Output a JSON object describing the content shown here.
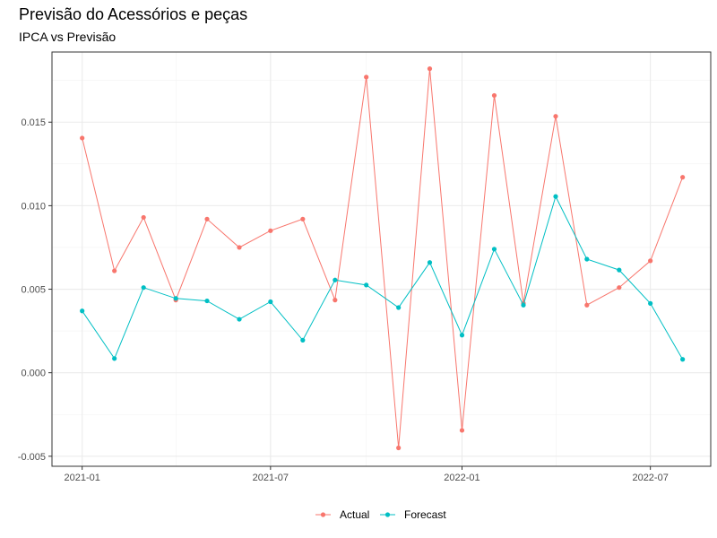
{
  "chart_data": {
    "type": "line",
    "title": "Previsão do Acessórios e peças",
    "subtitle": "IPCA vs Previsão",
    "xlabel": "",
    "ylabel": "",
    "x": [
      "2021-01-01",
      "2021-02-01",
      "2021-03-01",
      "2021-04-01",
      "2021-05-01",
      "2021-06-01",
      "2021-07-01",
      "2021-08-01",
      "2021-09-01",
      "2021-10-01",
      "2021-11-01",
      "2021-12-01",
      "2022-01-01",
      "2022-02-01",
      "2022-03-01",
      "2022-04-01",
      "2022-05-01",
      "2022-06-01",
      "2022-07-01",
      "2022-08-01"
    ],
    "x_ticks": [
      {
        "label": "2021-01",
        "date": "2021-01-01"
      },
      {
        "label": "2021-07",
        "date": "2021-07-01"
      },
      {
        "label": "2022-01",
        "date": "2022-01-01"
      },
      {
        "label": "2022-07",
        "date": "2022-07-01"
      }
    ],
    "y_ticks": [
      {
        "label": "-0.005",
        "value": -0.005
      },
      {
        "label": "0.000",
        "value": 0.0
      },
      {
        "label": "0.005",
        "value": 0.005
      },
      {
        "label": "0.010",
        "value": 0.01
      },
      {
        "label": "0.015",
        "value": 0.015
      }
    ],
    "ylim": [
      -0.0056,
      0.0192
    ],
    "xlim": [
      "2020-12-03",
      "2022-08-28"
    ],
    "grid": true,
    "legend_position": "bottom",
    "series": [
      {
        "name": "Actual",
        "color": "#F8766D",
        "values": [
          0.01405,
          0.0061,
          0.0093,
          0.00435,
          0.0092,
          0.0075,
          0.0085,
          0.0092,
          0.00435,
          0.0177,
          -0.0045,
          0.0182,
          -0.00345,
          0.0166,
          0.00415,
          0.01535,
          0.00405,
          0.0051,
          0.0067,
          0.0117
        ]
      },
      {
        "name": "Forecast",
        "color": "#00BFC4",
        "values": [
          0.0037,
          0.00085,
          0.0051,
          0.00445,
          0.0043,
          0.0032,
          0.00425,
          0.00195,
          0.00555,
          0.00525,
          0.0039,
          0.0066,
          0.00225,
          0.0074,
          0.00405,
          0.01055,
          0.0068,
          0.00615,
          0.00415,
          0.0008
        ]
      }
    ]
  }
}
